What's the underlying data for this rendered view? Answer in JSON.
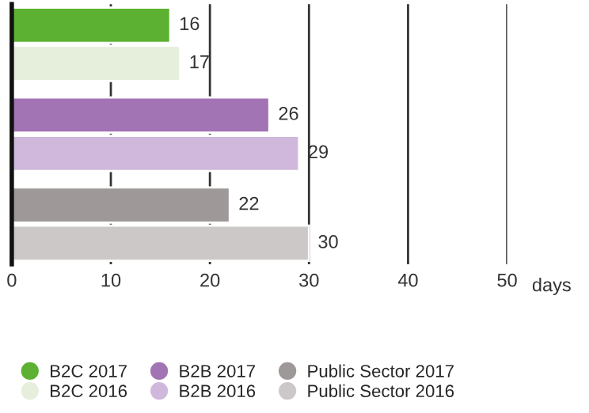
{
  "chart_data": {
    "type": "bar",
    "orientation": "horizontal",
    "xlabel": "days",
    "categories": [
      null,
      null,
      null,
      null,
      null,
      null
    ],
    "series": [
      {
        "name": "B2C 2017",
        "color": "#5cb132",
        "values": [
          16,
          null,
          null,
          null,
          null,
          null
        ]
      },
      {
        "name": "B2C 2016",
        "color": "#e6eedc",
        "values": [
          null,
          17,
          null,
          null,
          null,
          null
        ]
      },
      {
        "name": "B2B 2017",
        "color": "#a274b4",
        "values": [
          null,
          null,
          26,
          null,
          null,
          null
        ]
      },
      {
        "name": "B2B 2016",
        "color": "#d0b8dc",
        "values": [
          null,
          null,
          null,
          29,
          null,
          null
        ]
      },
      {
        "name": "Public Sector 2017",
        "color": "#9e9898",
        "values": [
          null,
          null,
          null,
          null,
          22,
          null
        ]
      },
      {
        "name": "Public Sector 2016",
        "color": "#cdc8c8",
        "values": [
          null,
          null,
          null,
          null,
          null,
          30
        ]
      }
    ],
    "xlim": [
      0,
      50
    ],
    "xticks": [
      0,
      10,
      20,
      30,
      40,
      50
    ],
    "grid": "x",
    "legend": "bottom",
    "data_labels": true
  }
}
